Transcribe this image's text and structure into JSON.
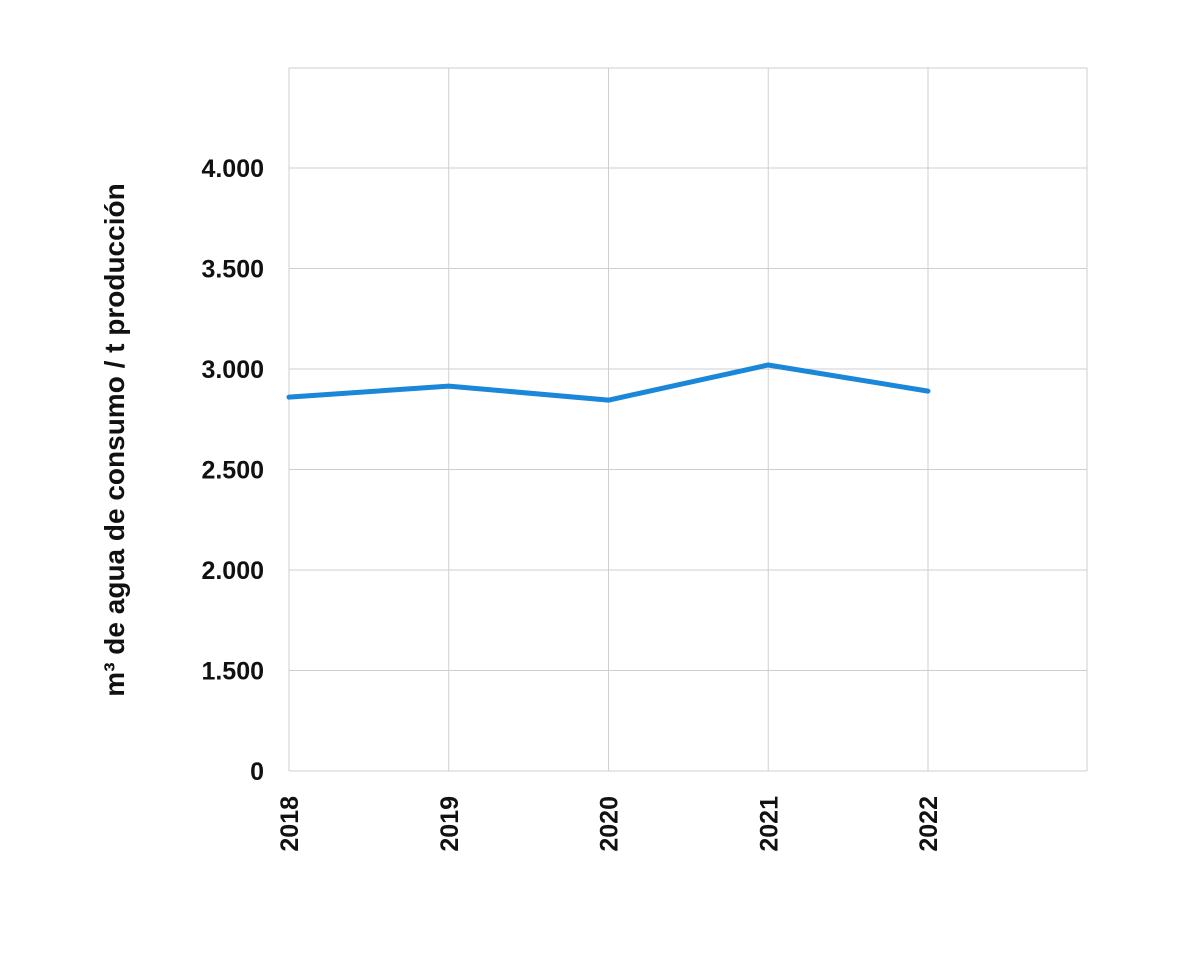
{
  "chart_data": {
    "type": "line",
    "title": "",
    "xlabel": "",
    "ylabel": "m³ de agua de consumo / t producción",
    "categories": [
      "2018",
      "2019",
      "2020",
      "2021",
      "2022"
    ],
    "y_ticks": [
      {
        "value": 0,
        "label": "0"
      },
      {
        "value": 1500,
        "label": "1.500"
      },
      {
        "value": 2000,
        "label": "2.000"
      },
      {
        "value": 2500,
        "label": "2.500"
      },
      {
        "value": 3000,
        "label": "3.000"
      },
      {
        "value": 3500,
        "label": "3.500"
      },
      {
        "value": 4000,
        "label": "4.000"
      }
    ],
    "series": [
      {
        "values": [
          2860,
          2915,
          2845,
          3020,
          2890
        ],
        "color": "#1a87d8"
      }
    ],
    "grid": true,
    "legend": "none"
  }
}
